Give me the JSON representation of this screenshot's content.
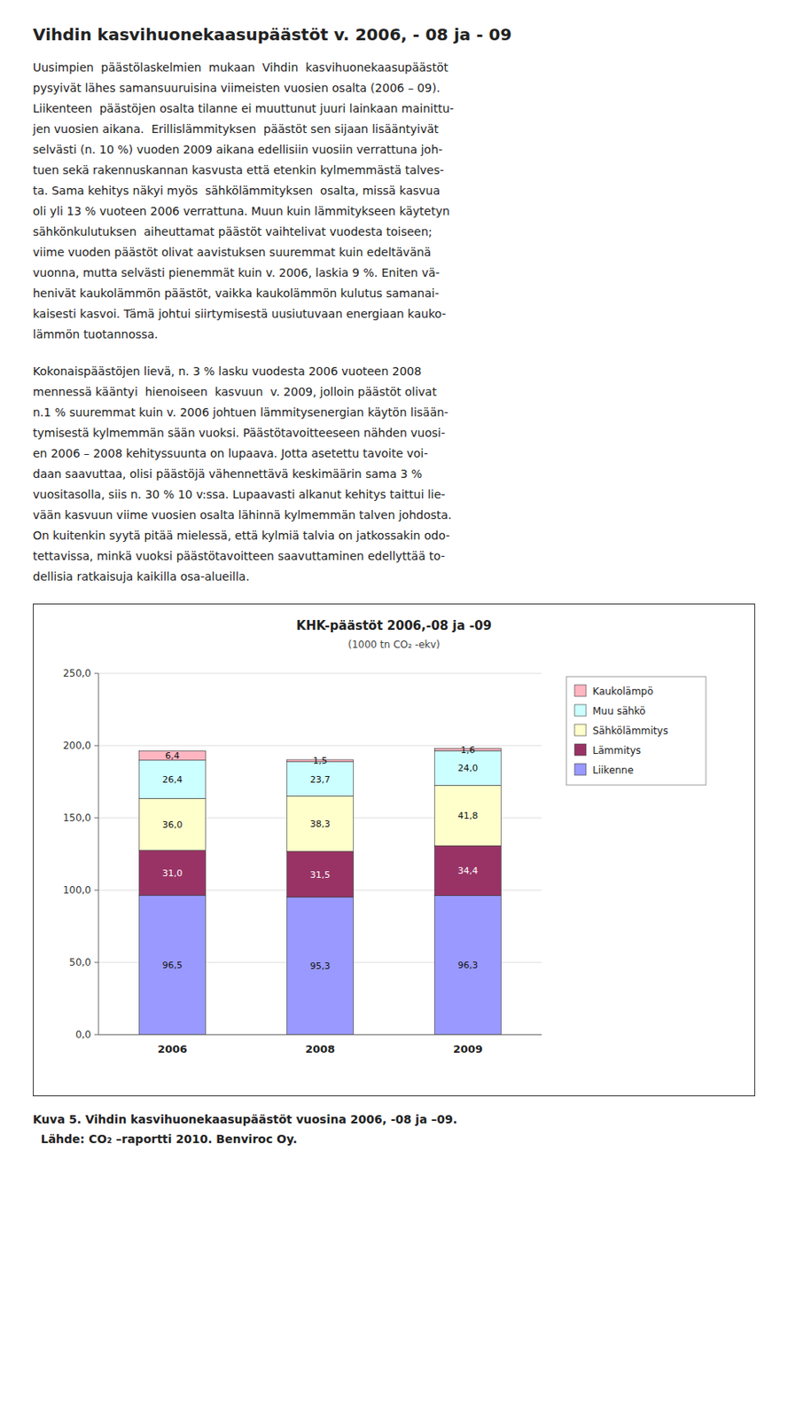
{
  "heading": "Vihdin kasvihuonekaasupäästöt v. 2006, - 08 ja - 09",
  "paragraphs": [
    [
      "Uusimpien  päästölaskelmien  mukaan  Vihdin  kasvihuonekaasupäästöt",
      "pysyivät lähes samansuuruisina viimeisten vuosien osalta (2006 – 09).",
      "Liikenteen  päästöjen osalta tilanne ei muuttunut juuri lainkaan mainittu-",
      "jen vuosien aikana.  Erillislämmityksen  päästöt sen sijaan lisääntyivät",
      "selvästi (n. 10 %) vuoden 2009 aikana edellisiin vuosiin verrattuna joh-",
      "tuen sekä rakennuskannan kasvusta että etenkin kylmemmästä talves-",
      "ta. Sama kehitys näkyi myös  sähkölämmityksen  osalta, missä kasvua",
      "oli yli 13 % vuoteen 2006 verrattuna. Muun kuin lämmitykseen käytetyn",
      "sähkönkulutuksen  aiheuttamat päästöt vaihtelivat vuodesta toiseen;",
      "viime vuoden päästöt olivat aavistuksen suuremmat kuin edeltävänä",
      "vuonna, mutta selvästi pienemmät kuin v. 2006, laskia 9 %. Eniten vä-",
      "henivät kaukolämmön päästöt, vaikka kaukolämmön kulutus samanai-",
      "kaisesti kasvoi. Tämä johtui siirtymisestä uusiutuvaan energiaan kauko-",
      "lämmön tuotannossa."
    ],
    [
      "Kokonaispäästöjen lievä, n. 3 % lasku vuodesta 2006 vuoteen 2008",
      "mennessä kääntyi  hienoiseen  kasvuun  v. 2009, jolloin päästöt olivat",
      "n.1 % suuremmat kuin v. 2006 johtuen lämmitysenergian käytön lisään-",
      "tymisestä kylmemmän sään vuoksi. Päästötavoitteeseen nähden vuosi-",
      "en 2006 – 2008 kehityssuunta on lupaava. Jotta asetettu tavoite voi-",
      "daan saavuttaa, olisi päästöjä vähennettävä keskimäärin sama 3 %",
      "vuositasolla, siis n. 30 % 10 v:ssa. Lupaavasti alkanut kehitys taittui lie-",
      "vään kasvuun viime vuosien osalta lähinnä kylmemmän talven johdosta.",
      "On kuitenkin syytä pitää mielessä, että kylmiä talvia on jatkossakin odo-",
      "tettavissa, minkä vuoksi päästötavoitteen saavuttaminen edellyttää to-",
      "dellisia ratkaisuja kaikilla osa-alueilla."
    ]
  ],
  "captions": [
    "Kuva 5. Vihdin kasvihuonekaasupäästöt vuosina 2006, -08 ja –09.",
    "  Lähde: CO₂ –raportti 2010. Benviroc Oy."
  ],
  "chart_data": {
    "type": "bar",
    "stacked": true,
    "title": "KHK-päästöt 2006,-08 ja -09",
    "subtitle": "(1000 tn CO₂ -ekv)",
    "categories": [
      "2006",
      "2008",
      "2009"
    ],
    "series": [
      {
        "name": "Liikenne",
        "color": "#9999FF",
        "values": [
          96.5,
          95.3,
          96.3
        ],
        "value_labels": [
          "96,5",
          "95,3",
          "96,3"
        ]
      },
      {
        "name": "Lämmitys",
        "color": "#993366",
        "values": [
          31.0,
          31.5,
          34.4
        ],
        "value_labels": [
          "31,0",
          "31,5",
          "34,4"
        ]
      },
      {
        "name": "Sähkölämmitys",
        "color": "#FFFFCC",
        "values": [
          36.0,
          38.3,
          41.8
        ],
        "value_labels": [
          "36,0",
          "38,3",
          "41,8"
        ]
      },
      {
        "name": "Muu sähkö",
        "color": "#CCFFFF",
        "values": [
          26.4,
          23.7,
          24.0
        ],
        "value_labels": [
          "26,4",
          "23,7",
          "24,0"
        ]
      },
      {
        "name": "Kaukolämpö",
        "color": "#FFB6C1",
        "values": [
          6.4,
          1.5,
          1.6
        ],
        "value_labels": [
          "6,4",
          "1,5",
          "1,6"
        ]
      }
    ],
    "ylim": [
      0,
      250
    ],
    "yticks": [
      {
        "value": 0,
        "label": "0,0"
      },
      {
        "value": 50,
        "label": "50,0"
      },
      {
        "value": 100,
        "label": "100,0"
      },
      {
        "value": 150,
        "label": "150,0"
      },
      {
        "value": 200,
        "label": "200,0"
      },
      {
        "value": 250,
        "label": "250,0"
      }
    ],
    "grid": true,
    "data_labels": true,
    "legend": "right"
  }
}
